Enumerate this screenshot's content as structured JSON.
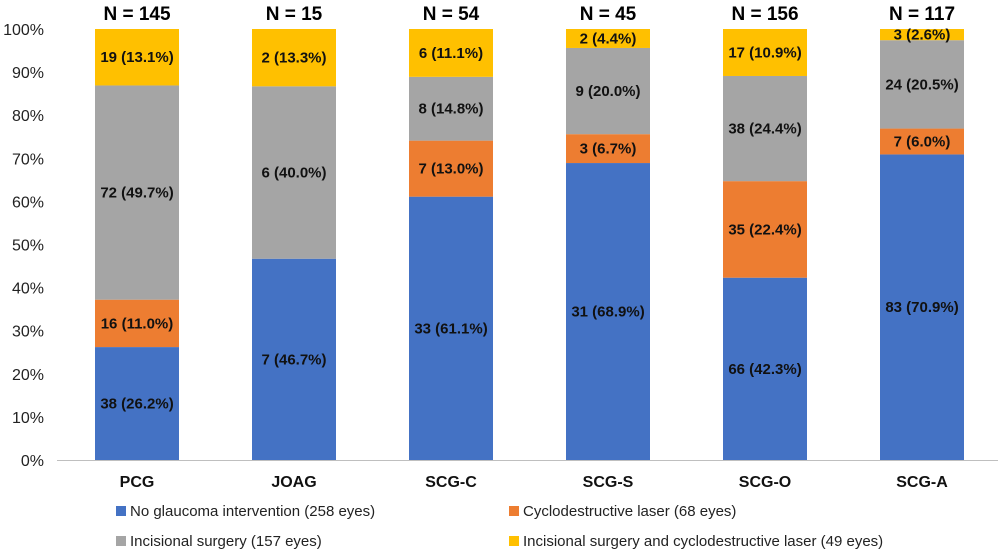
{
  "chart_data": {
    "type": "bar",
    "stacked": true,
    "categories": [
      "PCG",
      "JOAG",
      "SCG-C",
      "SCG-S",
      "SCG-O",
      "SCG-A"
    ],
    "totals_labels": [
      "N = 145",
      "N = 15",
      "N = 54",
      "N = 45",
      "N = 156",
      "N = 117"
    ],
    "ylim": [
      0,
      100
    ],
    "yticks": [
      "0%",
      "10%",
      "20%",
      "30%",
      "40%",
      "50%",
      "60%",
      "70%",
      "80%",
      "90%",
      "100%"
    ],
    "grid": false,
    "legend_position": "bottom",
    "series": [
      {
        "name": "No glaucoma intervention (258 eyes)",
        "color": "#4472C4",
        "values": [
          26.2,
          46.7,
          61.1,
          68.9,
          42.3,
          70.9
        ],
        "labels": [
          "38 (26.2%)",
          "7 (46.7%)",
          "33 (61.1%)",
          "31 (68.9%)",
          "66 (42.3%)",
          "83 (70.9%)"
        ]
      },
      {
        "name": "Cyclodestructive laser (68 eyes)",
        "color": "#ED7D31",
        "values": [
          11.0,
          0,
          13.0,
          6.7,
          22.4,
          6.0
        ],
        "labels": [
          "16 (11.0%)",
          "",
          "7 (13.0%)",
          "3 (6.7%)",
          "35 (22.4%)",
          "7 (6.0%)"
        ]
      },
      {
        "name": "Incisional surgery (157 eyes)",
        "color": "#A5A5A5",
        "values": [
          49.7,
          40.0,
          14.8,
          20.0,
          24.4,
          20.5
        ],
        "labels": [
          "72 (49.7%)",
          "6 (40.0%)",
          "8 (14.8%)",
          "9 (20.0%)",
          "38 (24.4%)",
          "24 (20.5%)"
        ]
      },
      {
        "name": "Incisional surgery and cyclodestructive laser (49 eyes)",
        "color": "#FFC000",
        "values": [
          13.1,
          13.3,
          11.1,
          4.4,
          10.9,
          2.6
        ],
        "labels": [
          "19 (13.1%)",
          "2 (13.3%)",
          "6 (11.1%)",
          "2 (4.4%)",
          "17 (10.9%)",
          "3 (2.6%)"
        ]
      }
    ]
  }
}
